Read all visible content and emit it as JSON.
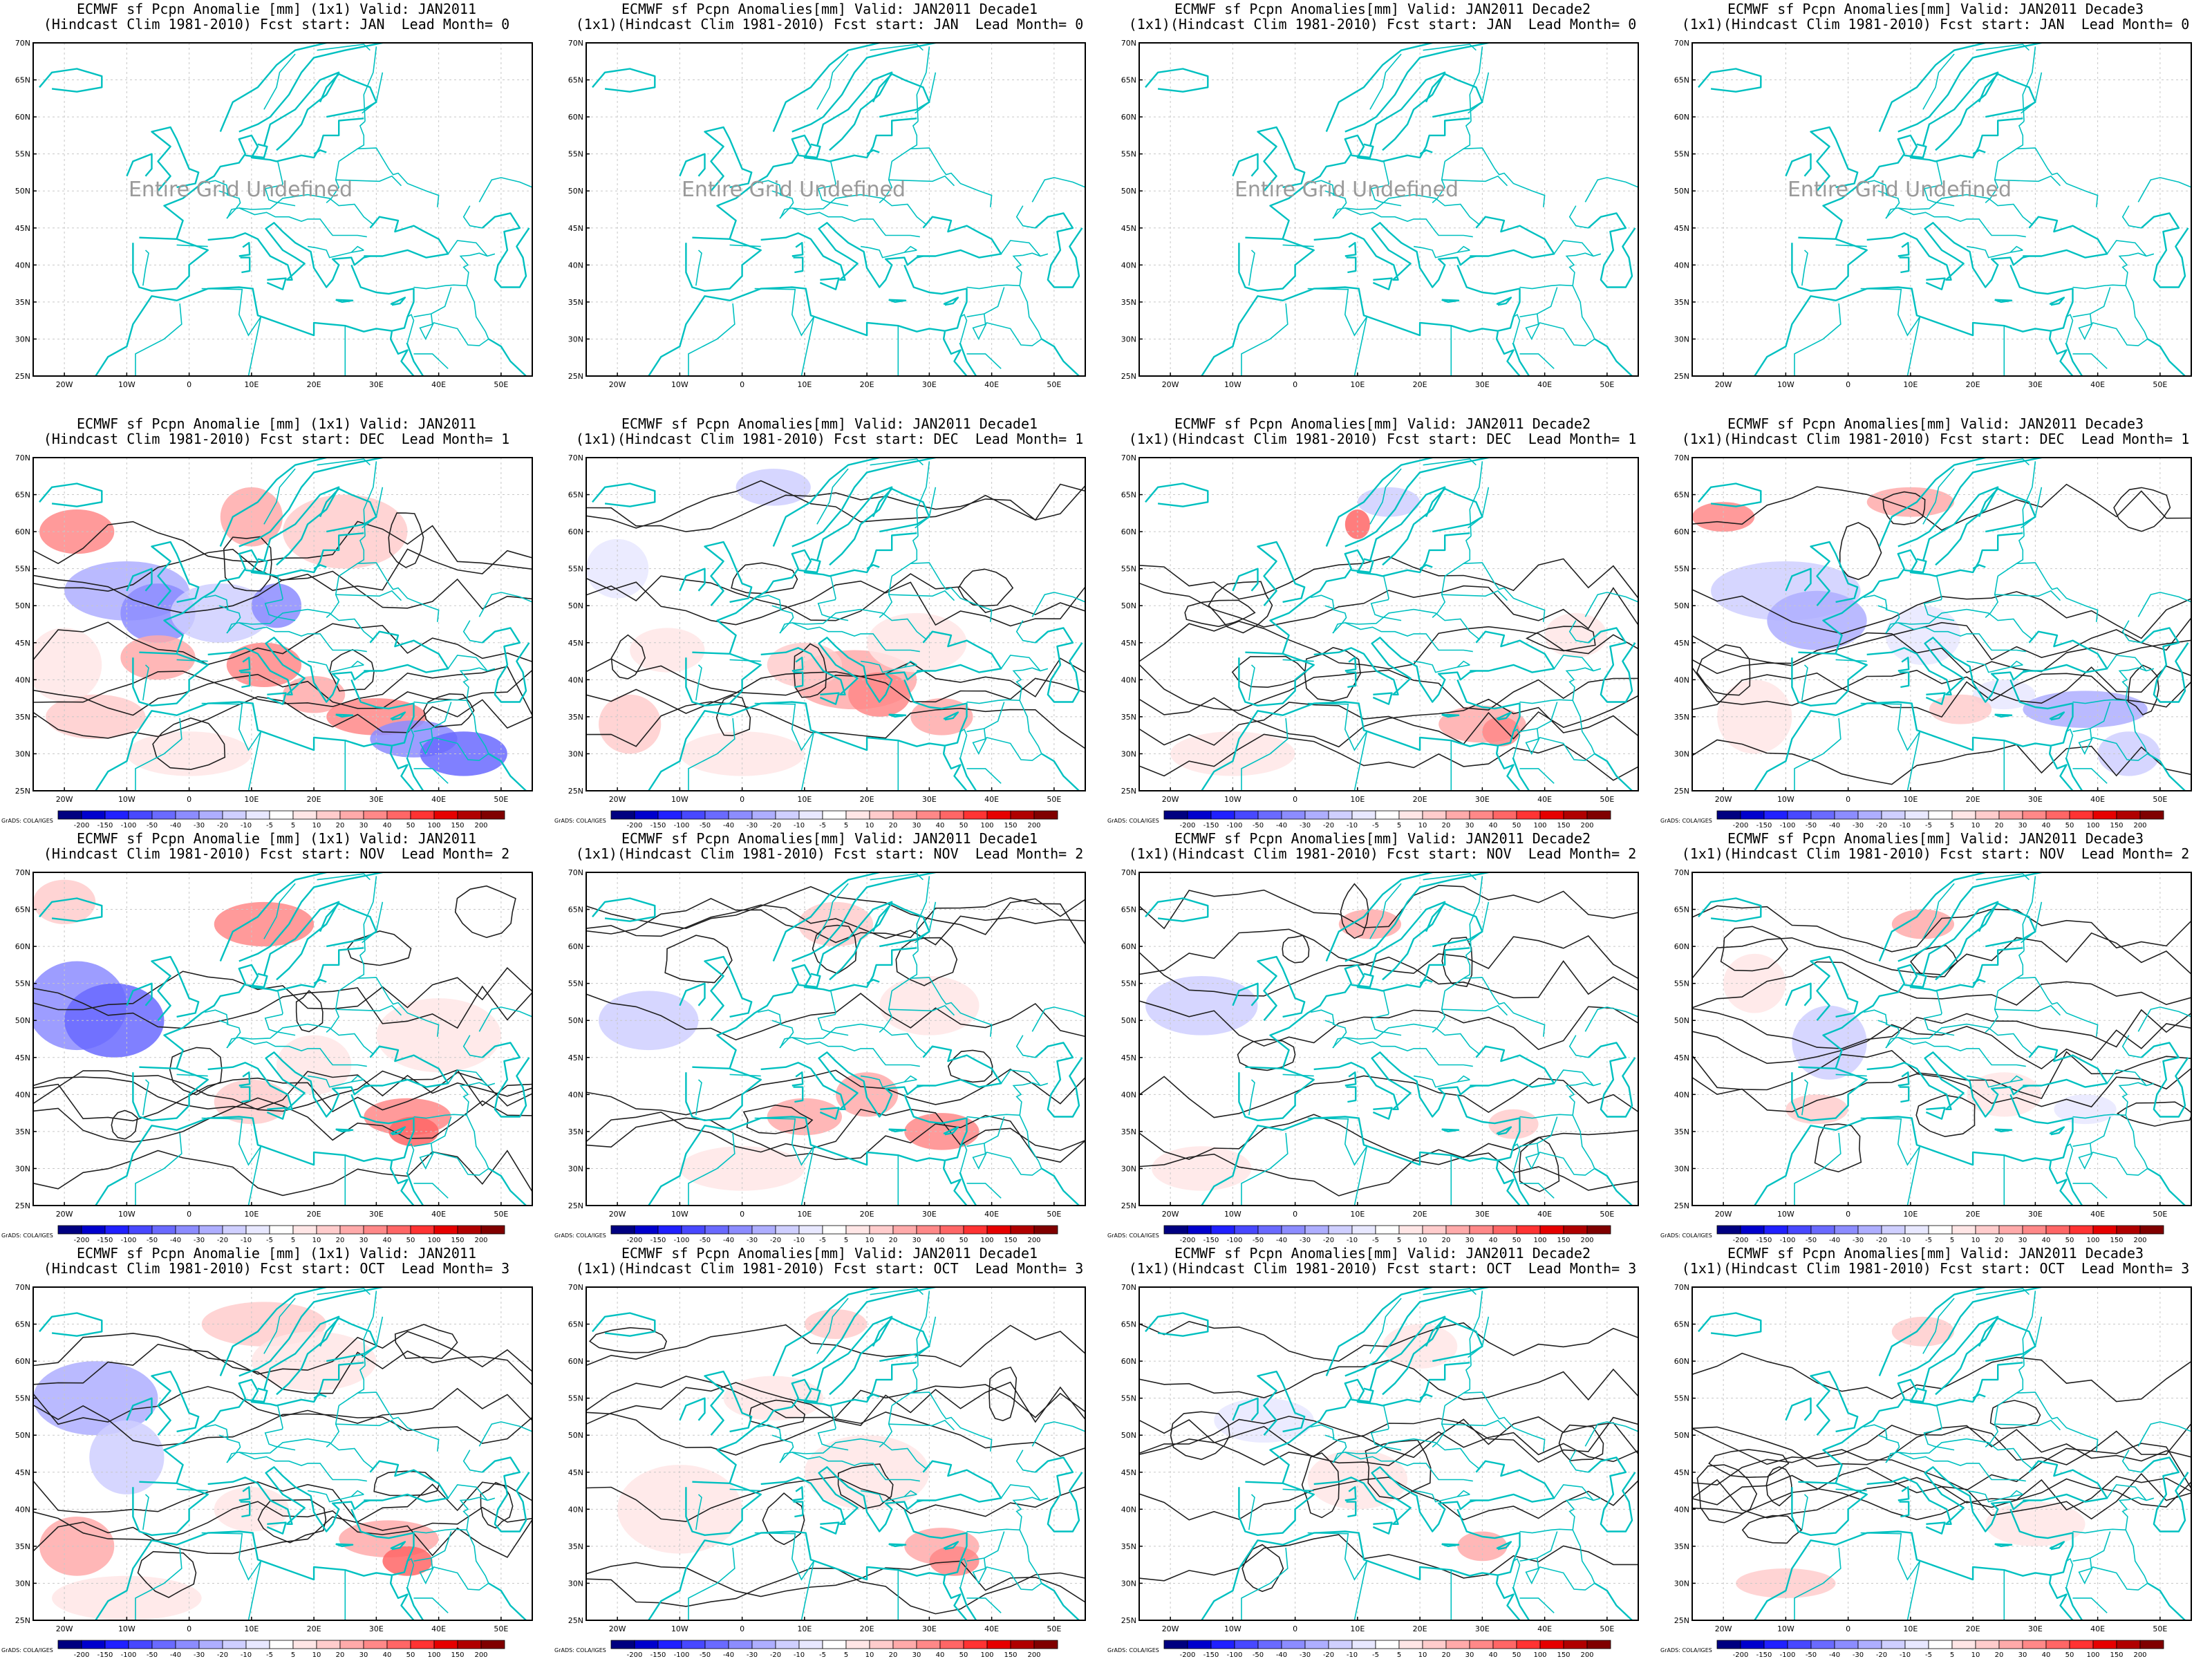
{
  "figure": {
    "rows": [
      {
        "lead_label": "Lead Month= 0",
        "fcst_start": "JAN",
        "undefined": true
      },
      {
        "lead_label": "Lead Month= 1",
        "fcst_start": "DEC",
        "undefined": false
      },
      {
        "lead_label": "Lead Month= 2",
        "fcst_start": "NOV",
        "undefined": false
      },
      {
        "lead_label": "Lead Month= 3",
        "fcst_start": "OCT",
        "undefined": false
      }
    ],
    "columns": [
      {
        "line1": "ECMWF sf Pcpn Anomalie [mm] (1x1) Valid: JAN2011",
        "line2_prefix": "(Hindcast Clim 1981-2010) Fcst start: "
      },
      {
        "line1": "ECMWF sf Pcpn Anomalies[mm] Valid: JAN2011 Decade1",
        "line2_prefix": "(1x1)(Hindcast Clim 1981-2010) Fcst start: "
      },
      {
        "line1": "ECMWF sf Pcpn Anomalies[mm] Valid: JAN2011 Decade2",
        "line2_prefix": "(1x1)(Hindcast Clim 1981-2010) Fcst start: "
      },
      {
        "line1": "ECMWF sf Pcpn Anomalies[mm] Valid: JAN2011 Decade3",
        "line2_prefix": "(1x1)(Hindcast Clim 1981-2010) Fcst start: "
      }
    ],
    "undefined_message": "Entire Grid Undefined",
    "lat_labels": [
      "70N",
      "65N",
      "60N",
      "55N",
      "50N",
      "45N",
      "40N",
      "35N",
      "30N",
      "25N"
    ],
    "lon_labels": [
      "20W",
      "10W",
      "0",
      "10E",
      "20E",
      "30E",
      "40E",
      "50E"
    ],
    "colorbar": {
      "levels": [
        "-200",
        "-150",
        "-100",
        "-50",
        "-40",
        "-30",
        "-20",
        "-10",
        "-5",
        "5",
        "10",
        "20",
        "30",
        "40",
        "50",
        "100",
        "150",
        "200"
      ],
      "colors": [
        "#000080",
        "#0000cd",
        "#2020ff",
        "#4848ff",
        "#6a6aff",
        "#8c8cff",
        "#aeaeff",
        "#cfcfff",
        "#e8e8ff",
        "#ffffff",
        "#ffe6e6",
        "#ffcccc",
        "#ffaaaa",
        "#ff8888",
        "#ff6666",
        "#ff3333",
        "#e60000",
        "#b00000",
        "#800000"
      ],
      "credit": "GrADS: COLA/IGES"
    },
    "coast_color": "#00c0c0"
  }
}
